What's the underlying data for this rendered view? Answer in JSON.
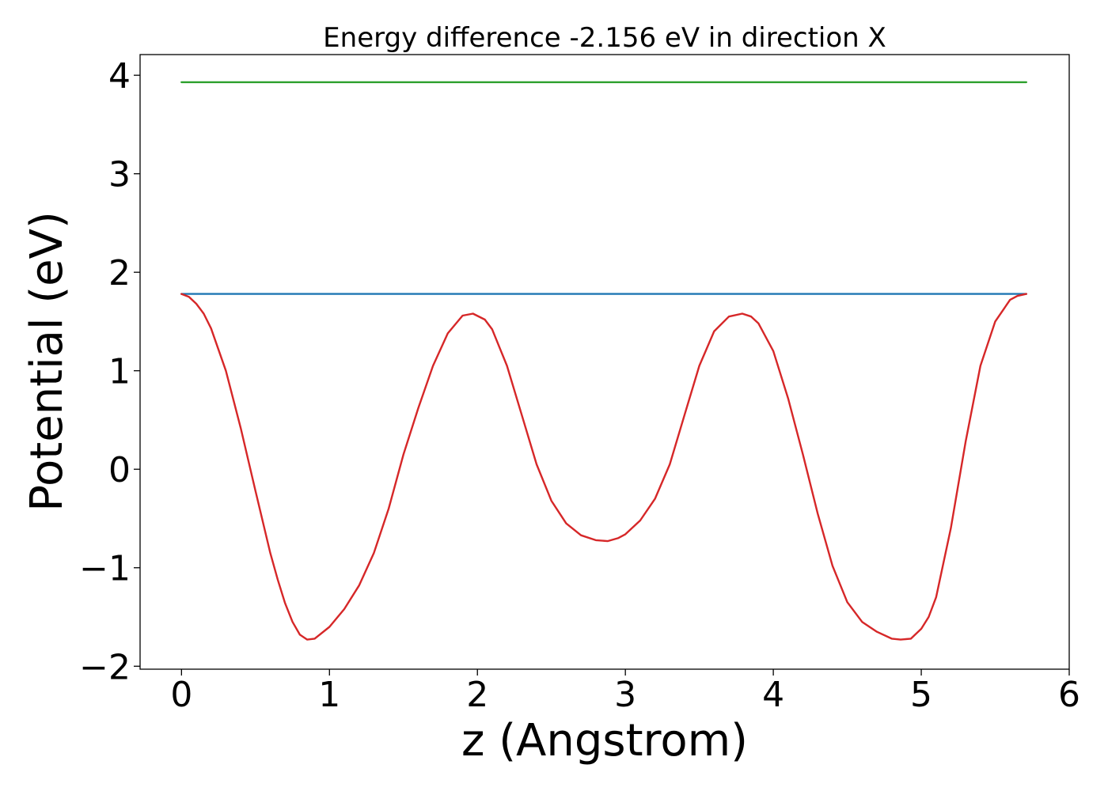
{
  "chart_data": {
    "type": "line",
    "title": "Energy difference -2.156 eV in direction X",
    "xlabel": "z (Angstrom)",
    "ylabel": "Potential (eV)",
    "xlim": [
      -0.28,
      6.0
    ],
    "ylim": [
      -2.03,
      4.21
    ],
    "xticks": [
      0,
      1,
      2,
      3,
      4,
      5,
      6
    ],
    "xtick_labels": [
      "0",
      "1",
      "2",
      "3",
      "4",
      "5",
      "6"
    ],
    "yticks": [
      -2,
      -1,
      0,
      1,
      2,
      3,
      4
    ],
    "ytick_labels": [
      "−2",
      "−1",
      "0",
      "1",
      "2",
      "3",
      "4"
    ],
    "grid": false,
    "series": [
      {
        "color": "#2ca02c",
        "x": [
          0,
          5.71
        ],
        "y": [
          3.93,
          3.93
        ]
      },
      {
        "color": "#1f77b4",
        "x": [
          0,
          5.71
        ],
        "y": [
          1.78,
          1.78
        ]
      },
      {
        "color": "#d62728",
        "x": [
          0,
          0.05,
          0.1,
          0.15,
          0.2,
          0.3,
          0.4,
          0.5,
          0.6,
          0.65,
          0.7,
          0.75,
          0.8,
          0.85,
          0.9,
          1.0,
          1.1,
          1.2,
          1.3,
          1.4,
          1.5,
          1.6,
          1.7,
          1.8,
          1.9,
          1.97,
          2.05,
          2.1,
          2.2,
          2.3,
          2.4,
          2.5,
          2.6,
          2.7,
          2.8,
          2.88,
          2.95,
          3.0,
          3.1,
          3.2,
          3.3,
          3.4,
          3.5,
          3.6,
          3.7,
          3.79,
          3.85,
          3.9,
          4.0,
          4.1,
          4.2,
          4.3,
          4.4,
          4.5,
          4.6,
          4.7,
          4.8,
          4.86,
          4.93,
          5.0,
          5.05,
          5.1,
          5.2,
          5.3,
          5.4,
          5.5,
          5.6,
          5.65,
          5.71
        ],
        "y": [
          1.78,
          1.75,
          1.68,
          1.58,
          1.43,
          1.0,
          0.42,
          -0.22,
          -0.85,
          -1.12,
          -1.36,
          -1.55,
          -1.68,
          -1.73,
          -1.72,
          -1.6,
          -1.42,
          -1.18,
          -0.85,
          -0.4,
          0.15,
          0.62,
          1.05,
          1.38,
          1.56,
          1.58,
          1.52,
          1.42,
          1.05,
          0.55,
          0.05,
          -0.32,
          -0.55,
          -0.67,
          -0.72,
          -0.73,
          -0.7,
          -0.66,
          -0.52,
          -0.3,
          0.05,
          0.55,
          1.05,
          1.4,
          1.55,
          1.58,
          1.55,
          1.48,
          1.2,
          0.72,
          0.15,
          -0.45,
          -0.98,
          -1.35,
          -1.55,
          -1.65,
          -1.72,
          -1.73,
          -1.72,
          -1.62,
          -1.5,
          -1.3,
          -0.6,
          0.28,
          1.05,
          1.5,
          1.72,
          1.76,
          1.78
        ]
      }
    ]
  }
}
